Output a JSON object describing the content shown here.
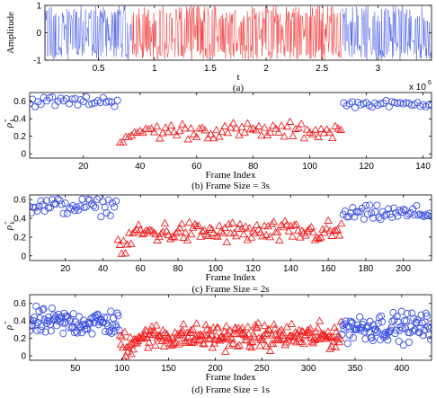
{
  "colors": {
    "series_a": "#3a4fe0",
    "series_b": "#ef2020",
    "axis": "#000000"
  },
  "chart_data": [
    {
      "type": "line",
      "panel": "(a)",
      "caption": "(a)",
      "xlabel": "t",
      "ylabel": "Amplitude",
      "x_multiplier_label": "x 10",
      "x_multiplier_exp": "6",
      "xlim": [
        0.02,
        3.48
      ],
      "ylim": [
        -1,
        1
      ],
      "xticks": [
        0.5,
        1,
        1.5,
        2,
        2.5,
        3
      ],
      "xtick_labels": [
        "0.5",
        "1",
        "1.5",
        "2",
        "2.5",
        "3"
      ],
      "yticks": [
        -1,
        0,
        1
      ],
      "ytick_labels": [
        "-1",
        "0",
        "1"
      ],
      "segments": [
        {
          "color": "series_a",
          "x_start": 0.02,
          "x_end": 0.8
        },
        {
          "color": "series_b",
          "x_start": 0.8,
          "x_end": 2.68
        },
        {
          "color": "series_a",
          "x_start": 2.68,
          "x_end": 3.48
        }
      ]
    },
    {
      "type": "scatter",
      "panel": "(b)",
      "caption": "(b) Frame Size = 3s",
      "xlabel": "Frame Index",
      "ylabel": "ρ̂",
      "ylabel_sub": "k",
      "xlim": [
        1,
        143
      ],
      "ylim": [
        -0.05,
        0.7
      ],
      "xticks": [
        20,
        40,
        60,
        80,
        100,
        120,
        140
      ],
      "yticks": [
        0,
        0.2,
        0.4,
        0.6
      ],
      "ytick_labels": [
        "0",
        "0.2",
        "0.4",
        "0.6"
      ],
      "change_points": [
        32,
        111
      ],
      "series": [
        {
          "marker": "circle",
          "color": "series_a",
          "x_range": [
            1,
            32
          ],
          "values_approx": {
            "mean": 0.6,
            "spread": 0.05
          }
        },
        {
          "marker": "triangle",
          "color": "series_b",
          "x_range": [
            33,
            111
          ],
          "values_approx": {
            "mean": 0.26,
            "spread": 0.08
          }
        },
        {
          "marker": "circle",
          "color": "series_a",
          "x_range": [
            112,
            143
          ],
          "values_approx": {
            "mean": 0.57,
            "spread": 0.03
          }
        }
      ]
    },
    {
      "type": "scatter",
      "panel": "(c)",
      "caption": "(c) Frame Size = 2s",
      "xlabel": "Frame Index",
      "ylabel": "ρ̂",
      "ylabel_sub": "k",
      "xlim": [
        1,
        215
      ],
      "ylim": [
        -0.05,
        0.65
      ],
      "xticks": [
        20,
        40,
        60,
        80,
        100,
        120,
        140,
        160,
        180,
        200
      ],
      "yticks": [
        0,
        0.2,
        0.4,
        0.6
      ],
      "ytick_labels": [
        "0",
        "0.2",
        "0.4",
        "0.6"
      ],
      "change_points": [
        47,
        167
      ],
      "series": [
        {
          "marker": "circle",
          "color": "series_a",
          "x_range": [
            1,
            47
          ],
          "values_approx": {
            "mean": 0.53,
            "spread": 0.08
          }
        },
        {
          "marker": "triangle",
          "color": "series_b",
          "x_range": [
            48,
            167
          ],
          "values_approx": {
            "mean": 0.25,
            "spread": 0.1
          }
        },
        {
          "marker": "circle",
          "color": "series_a",
          "x_range": [
            168,
            215
          ],
          "values_approx": {
            "mean": 0.45,
            "spread": 0.07
          }
        }
      ]
    },
    {
      "type": "scatter",
      "panel": "(d)",
      "caption": "(d) Frame Size = 1s",
      "xlabel": "Frame Index",
      "ylabel": "ρ̂",
      "xlim": [
        1,
        432
      ],
      "ylim": [
        -0.05,
        0.7
      ],
      "xticks": [
        50,
        100,
        150,
        200,
        250,
        300,
        350,
        400
      ],
      "yticks": [
        0,
        0.2,
        0.4,
        0.6
      ],
      "ytick_labels": [
        "0",
        "0.2",
        "0.4",
        "0.6"
      ],
      "change_points": [
        97,
        335
      ],
      "series": [
        {
          "marker": "circle",
          "color": "series_a",
          "x_range": [
            1,
            97
          ],
          "values_approx": {
            "mean": 0.38,
            "spread": 0.13
          }
        },
        {
          "marker": "triangle",
          "color": "series_b",
          "x_range": [
            98,
            335
          ],
          "values_approx": {
            "mean": 0.22,
            "spread": 0.12
          }
        },
        {
          "marker": "circle",
          "color": "series_a",
          "x_range": [
            336,
            432
          ],
          "values_approx": {
            "mean": 0.33,
            "spread": 0.14
          }
        }
      ]
    }
  ]
}
